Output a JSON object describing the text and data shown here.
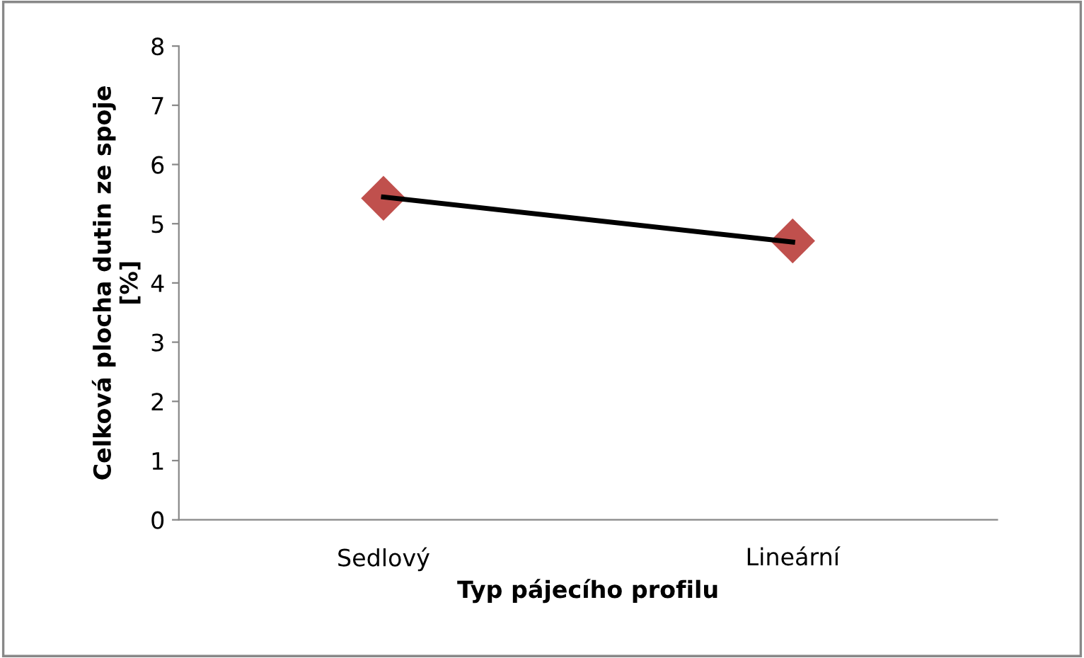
{
  "chart_data": {
    "type": "scatter",
    "xlabel": "Typ pájecího profilu",
    "ylabel": "Celková plocha dutin ze spoje\n[%]",
    "categories": [
      "Sedlový",
      "Lineární"
    ],
    "series": [
      {
        "color": "#c0504d",
        "marker": "diamond",
        "values": [
          5.43,
          4.71
        ]
      },
      {
        "type": "line",
        "color": "#000000",
        "values": [
          5.45,
          4.69
        ]
      }
    ],
    "ylim": [
      0,
      8
    ],
    "yticks": [
      0,
      1,
      2,
      3,
      4,
      5,
      6,
      7,
      8
    ],
    "grid": false,
    "legend": false
  }
}
